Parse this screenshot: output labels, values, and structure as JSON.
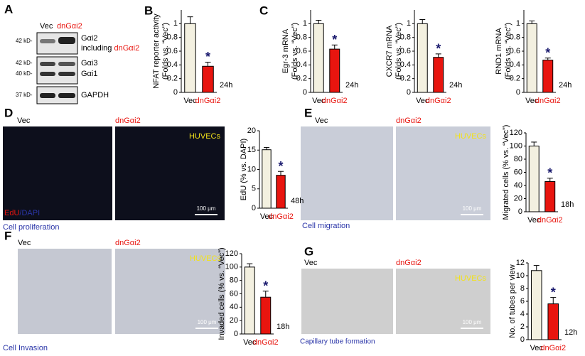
{
  "blot": {
    "label": "A",
    "lanes": [
      "Vec",
      "dnGαi2"
    ],
    "markers": [
      "42 kD-",
      "42 kD-",
      "40 kD-",
      "37 kD-"
    ],
    "proteins": [
      "Gαi2",
      "Gαi3",
      "Gαi1",
      "GAPDH"
    ],
    "note": [
      "including",
      "dnGαi2"
    ]
  },
  "images": [
    {
      "label": "D",
      "left": "Vec",
      "right": "dnGαi2",
      "cells": "HUVECs",
      "stain": [
        "EdU",
        "/DAPI"
      ],
      "scale": "100 μm",
      "caption": "Cell proliferation"
    },
    {
      "label": "E",
      "left": "Vec",
      "right": "dnGαi2",
      "cells": "HUVECs",
      "scale": "100 μm",
      "caption": "Cell migration"
    },
    {
      "label": "F",
      "left": "Vec",
      "right": "dnGαi2",
      "cells": "HUVECs",
      "scale": "100 μm",
      "caption": "Cell Invasion"
    },
    {
      "label": "G",
      "left": "Vec",
      "right": "dnGαi2",
      "cells": "HUVECs",
      "scale": "100 μm",
      "caption": "Capillary tube formation"
    }
  ],
  "chart_data": [
    {
      "type": "bar",
      "panel": "B",
      "y_label": [
        "NFAT reporter activity",
        "(Folds vs. “Vec”)"
      ],
      "categories": [
        "Vec",
        "dnGαi2"
      ],
      "values": [
        1.0,
        0.38
      ],
      "errors": [
        0.1,
        0.06
      ],
      "colors": [
        "#f3f0e0",
        "#e8150f"
      ],
      "ylim": [
        0,
        1.2
      ],
      "yticks": [
        0,
        0.2,
        0.4,
        0.6,
        0.8,
        1
      ],
      "annotation": "*",
      "note": "24h"
    },
    {
      "type": "bar",
      "panel": "C",
      "y_label": [
        "Egr-3 mRNA",
        "(Folds vs. “Vec”)"
      ],
      "categories": [
        "Vec",
        "dnGαi2"
      ],
      "values": [
        1.0,
        0.63
      ],
      "errors": [
        0.05,
        0.06
      ],
      "colors": [
        "#f3f0e0",
        "#e8150f"
      ],
      "ylim": [
        0,
        1.2
      ],
      "yticks": [
        0,
        0.2,
        0.4,
        0.6,
        0.8,
        1
      ],
      "annotation": "*",
      "note": "24h"
    },
    {
      "type": "bar",
      "y_label": [
        "CXCR7 mRNA",
        "(Folds vs. “Vec”)"
      ],
      "categories": [
        "Vec",
        "dnGαi2"
      ],
      "values": [
        1.0,
        0.51
      ],
      "errors": [
        0.06,
        0.05
      ],
      "colors": [
        "#f3f0e0",
        "#e8150f"
      ],
      "ylim": [
        0,
        1.2
      ],
      "yticks": [
        0,
        0.2,
        0.4,
        0.6,
        0.8,
        1
      ],
      "annotation": "*",
      "note": "24h"
    },
    {
      "type": "bar",
      "y_label": [
        "RND1 mRNA",
        "(Folds vs. “Vec”)"
      ],
      "categories": [
        "Vec",
        "dnGαi2"
      ],
      "values": [
        1.0,
        0.47
      ],
      "errors": [
        0.04,
        0.03
      ],
      "colors": [
        "#f3f0e0",
        "#e8150f"
      ],
      "ylim": [
        0,
        1.2
      ],
      "yticks": [
        0,
        0.2,
        0.4,
        0.6,
        0.8,
        1
      ],
      "annotation": "*",
      "note": "24h"
    },
    {
      "type": "bar",
      "y_label": [
        "EdU (% vs. DAPI)"
      ],
      "categories": [
        "Vec",
        "dnGαi2"
      ],
      "values": [
        15.1,
        8.5
      ],
      "errors": [
        0.6,
        1.0
      ],
      "colors": [
        "#f3f0e0",
        "#e8150f"
      ],
      "ylim": [
        0,
        20
      ],
      "yticks": [
        0,
        5,
        10,
        15,
        20
      ],
      "annotation": "*",
      "note": "48h"
    },
    {
      "type": "bar",
      "y_label": [
        "Migrated cells (% vs. “Vec”)"
      ],
      "categories": [
        "Vec",
        "dnGαi2"
      ],
      "values": [
        100,
        46
      ],
      "errors": [
        6,
        5
      ],
      "colors": [
        "#f3f0e0",
        "#e8150f"
      ],
      "ylim": [
        0,
        120
      ],
      "yticks": [
        0,
        20,
        40,
        60,
        80,
        100,
        120
      ],
      "annotation": "*",
      "note": "18h"
    },
    {
      "type": "bar",
      "y_label": [
        "Invaded cells (% vs. “Vec”)"
      ],
      "categories": [
        "Vec",
        "dnGαi2"
      ],
      "values": [
        100,
        55
      ],
      "errors": [
        5,
        9
      ],
      "colors": [
        "#f3f0e0",
        "#e8150f"
      ],
      "ylim": [
        0,
        120
      ],
      "yticks": [
        0,
        20,
        40,
        60,
        80,
        100,
        120
      ],
      "annotation": "*",
      "note": "18h"
    },
    {
      "type": "bar",
      "y_label": [
        "No. of tubes per view"
      ],
      "categories": [
        "Vec",
        "dnGαi2"
      ],
      "values": [
        10.8,
        5.6
      ],
      "errors": [
        0.8,
        1.0
      ],
      "colors": [
        "#f3f0e0",
        "#e8150f"
      ],
      "ylim": [
        0,
        12
      ],
      "yticks": [
        0,
        2,
        4,
        6,
        8,
        10,
        12
      ],
      "annotation": "*",
      "note": "12h"
    }
  ]
}
